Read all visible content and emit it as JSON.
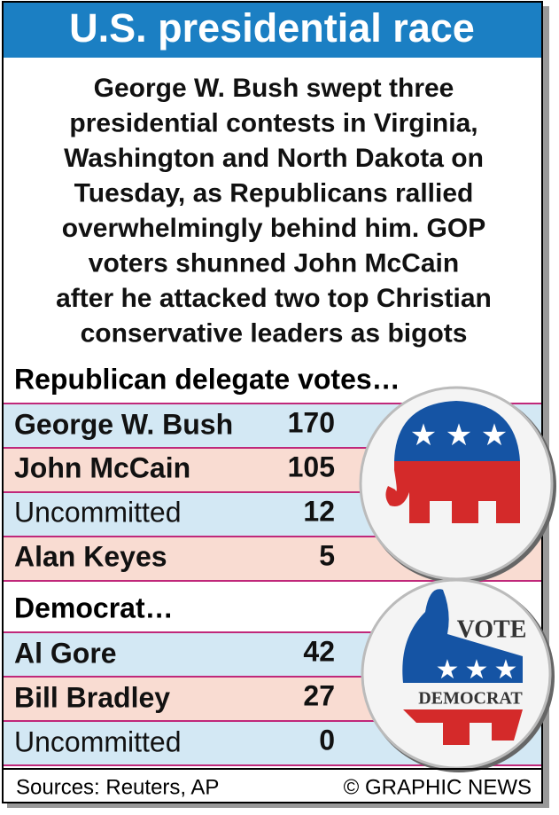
{
  "header": {
    "title": "U.S. presidential race"
  },
  "intro": {
    "lines": [
      "George W. Bush swept three",
      "presidential contests in Virginia,",
      "Washington and North Dakota on",
      "Tuesday, as Republicans rallied",
      "overwhelmingly behind him. GOP",
      "voters shunned John McCain",
      "after he attacked two top Christian",
      "conservative leaders as bigots"
    ]
  },
  "republican": {
    "heading": "Republican delegate votes…",
    "rows": [
      [
        "George W. Bush",
        "170"
      ],
      [
        "John McCain",
        "105"
      ],
      [
        "Uncommitted",
        "12"
      ],
      [
        "Alan Keyes",
        "5"
      ]
    ]
  },
  "democrat": {
    "heading": "Democrat…",
    "rows": [
      [
        "Al Gore",
        "42"
      ],
      [
        "Bill Bradley",
        "27"
      ],
      [
        "Uncommitted",
        "0"
      ]
    ]
  },
  "logo": {
    "vote": "VOTE",
    "party": "DEMOCRAT"
  },
  "footer": {
    "source": "Sources: Reuters, AP",
    "credit": "© GRAPHIC NEWS"
  }
}
